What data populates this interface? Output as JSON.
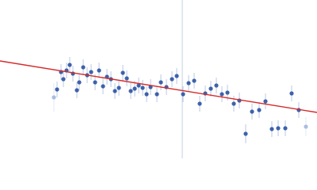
{
  "chart_data": {
    "type": "scatter",
    "xlim": [
      0,
      400
    ],
    "ylim": [
      0,
      200
    ],
    "vline": 230,
    "vline_color": "#c5cfe3",
    "series": [
      {
        "color": "#3d62ab",
        "x": [
          72,
          77,
          80,
          84,
          88,
          92,
          97,
          100,
          105,
          110,
          115,
          120,
          125,
          130,
          135,
          140,
          145,
          150,
          155,
          160,
          165,
          170,
          175,
          180,
          185,
          190,
          198,
          203,
          210,
          217,
          223,
          231,
          238,
          245,
          252,
          259,
          266,
          273,
          280,
          287,
          295,
          302,
          310,
          318,
          327,
          335,
          343,
          351,
          360,
          368,
          377
        ],
        "values": [
          87,
          109,
          100,
          111,
          118,
          107,
          86,
          96,
          115,
          105,
          109,
          96,
          111,
          91,
          103,
          100,
          85,
          89,
          108,
          101,
          85,
          88,
          92,
          89,
          81,
          90,
          81,
          96,
          90,
          100,
          104,
          81,
          95,
          98,
          69,
          82,
          88,
          92,
          81,
          83,
          69,
          73,
          31,
          59,
          61,
          72,
          37,
          38,
          38,
          82,
          61
        ],
        "errors": [
          10,
          10,
          10,
          10,
          10,
          10,
          10,
          10,
          10,
          10,
          10,
          10,
          10,
          10,
          10,
          10,
          10,
          10,
          10,
          10,
          10,
          10,
          10,
          10,
          10,
          10,
          10,
          10,
          10,
          10,
          10,
          10,
          10,
          10,
          10,
          10,
          10,
          10,
          10,
          10,
          10,
          10,
          12,
          10,
          10,
          10,
          10,
          10,
          10,
          10,
          10
        ]
      },
      {
        "color": "#aabde0",
        "x": [
          68,
          386
        ],
        "values": [
          77,
          40
        ],
        "errors": [
          18,
          12
        ]
      }
    ],
    "fit": {
      "color": "#d42a2a",
      "x": [
        0,
        400
      ],
      "values": [
        123,
        58
      ]
    }
  }
}
